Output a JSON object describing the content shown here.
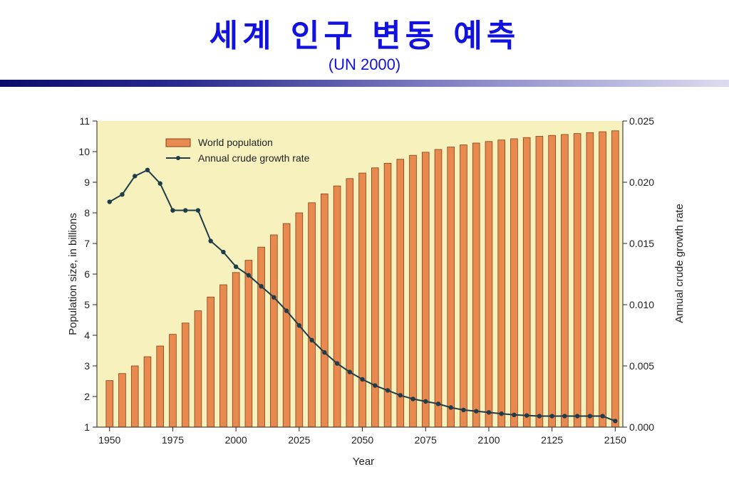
{
  "header": {
    "title": "세계 인구 변동 예측",
    "subtitle": "(UN 2000)"
  },
  "colors": {
    "title": "#1212e0",
    "plot_background": "#f6f1bd",
    "bar_fill": "#e8894f",
    "bar_stroke": "#8a3e14",
    "line": "#1f3c4a"
  },
  "chart_data": {
    "type": "bar",
    "xlabel": "Year",
    "ylabel": "Population size, in billions",
    "y2label": "Annual crude growth rate",
    "xlim": [
      1945,
      2153
    ],
    "ylim": [
      1,
      11
    ],
    "y2lim": [
      0,
      0.025
    ],
    "x_ticks": [
      1950,
      1975,
      2000,
      2025,
      2050,
      2075,
      2100,
      2125,
      2150
    ],
    "y_ticks": [
      1,
      2,
      3,
      4,
      5,
      6,
      7,
      8,
      9,
      10,
      11
    ],
    "y2_ticks": [
      "0.000",
      "0.005",
      "0.010",
      "0.015",
      "0.020",
      "0.025"
    ],
    "legend_position": "top-left",
    "x": [
      1950,
      1955,
      1960,
      1965,
      1970,
      1975,
      1980,
      1985,
      1990,
      1995,
      2000,
      2005,
      2010,
      2015,
      2020,
      2025,
      2030,
      2035,
      2040,
      2045,
      2050,
      2055,
      2060,
      2065,
      2070,
      2075,
      2080,
      2085,
      2090,
      2095,
      2100,
      2105,
      2110,
      2115,
      2120,
      2125,
      2130,
      2135,
      2140,
      2145,
      2150
    ],
    "series": [
      {
        "name": "World population",
        "kind": "bar",
        "axis": "left",
        "values": [
          2.52,
          2.75,
          3.0,
          3.3,
          3.65,
          4.03,
          4.4,
          4.8,
          5.25,
          5.65,
          6.05,
          6.45,
          6.88,
          7.28,
          7.65,
          8.0,
          8.33,
          8.62,
          8.88,
          9.12,
          9.3,
          9.47,
          9.62,
          9.75,
          9.88,
          9.98,
          10.07,
          10.15,
          10.22,
          10.28,
          10.33,
          10.38,
          10.42,
          10.46,
          10.5,
          10.53,
          10.56,
          10.59,
          10.62,
          10.65,
          10.68
        ]
      },
      {
        "name": "Annual crude growth rate",
        "kind": "line",
        "axis": "right",
        "values": [
          0.0184,
          0.019,
          0.0205,
          0.021,
          0.0199,
          0.0177,
          0.0177,
          0.0177,
          0.0152,
          0.0143,
          0.0131,
          0.0124,
          0.0115,
          0.0106,
          0.0095,
          0.0083,
          0.0071,
          0.0061,
          0.0052,
          0.0045,
          0.0039,
          0.0034,
          0.003,
          0.0026,
          0.0023,
          0.0021,
          0.0019,
          0.0016,
          0.0014,
          0.0013,
          0.0012,
          0.0011,
          0.001,
          0.00095,
          0.0009,
          0.0009,
          0.0009,
          0.0009,
          0.0009,
          0.0009,
          0.0005
        ]
      }
    ]
  }
}
